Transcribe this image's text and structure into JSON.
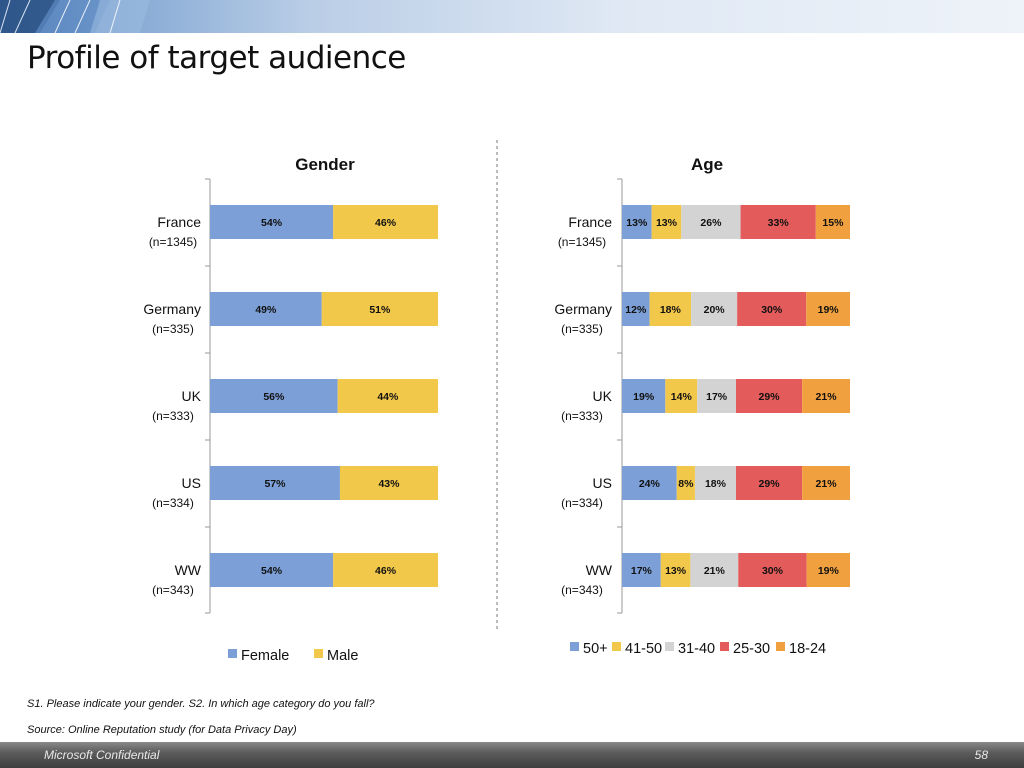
{
  "slide": {
    "title": "Profile of target audience",
    "footnote_question": "S1. Please indicate your gender. S2. In which age category do you fall?",
    "footnote_source": "Source: Online Reputation study (for Data Privacy Day)",
    "footer_left": "Microsoft Confidential",
    "page_number": "58"
  },
  "chart_data": [
    {
      "type": "bar",
      "orientation": "horizontal",
      "stacked": "percent",
      "title": "Gender",
      "categories": [
        "France",
        "Germany",
        "UK",
        "US",
        "WW"
      ],
      "sample_sizes": [
        "(n=1345)",
        "(n=335)",
        "(n=333)",
        "(n=334)",
        "(n=343)"
      ],
      "series": [
        {
          "name": "Female",
          "color": "#7b9fd6",
          "values": [
            54,
            49,
            56,
            57,
            54
          ],
          "labels": [
            "54%",
            "49%",
            "56%",
            "57%",
            "54%"
          ]
        },
        {
          "name": "Male",
          "color": "#f2c84b",
          "values": [
            46,
            51,
            44,
            43,
            46
          ],
          "labels": [
            "46%",
            "51%",
            "44%",
            "43%",
            "46%"
          ]
        }
      ],
      "legend_position": "bottom"
    },
    {
      "type": "bar",
      "orientation": "horizontal",
      "stacked": "percent",
      "title": "Age",
      "categories": [
        "France",
        "Germany",
        "UK",
        "US",
        "WW"
      ],
      "sample_sizes": [
        "(n=1345)",
        "(n=335)",
        "(n=333)",
        "(n=334)",
        "(n=343)"
      ],
      "series": [
        {
          "name": "50+",
          "color": "#7b9fd6",
          "values": [
            13,
            12,
            19,
            24,
            17
          ],
          "labels": [
            "13%",
            "12%",
            "19%",
            "24%",
            "17%"
          ]
        },
        {
          "name": "41-50",
          "color": "#f2c84b",
          "values": [
            13,
            18,
            14,
            8,
            13
          ],
          "labels": [
            "13%",
            "18%",
            "14%",
            "8%",
            "13%"
          ]
        },
        {
          "name": "31-40",
          "color": "#d3d3d3",
          "values": [
            26,
            20,
            17,
            18,
            21
          ],
          "labels": [
            "26%",
            "20%",
            "17%",
            "18%",
            "21%"
          ]
        },
        {
          "name": "25-30",
          "color": "#e45b5b",
          "values": [
            33,
            30,
            29,
            29,
            30
          ],
          "labels": [
            "33%",
            "30%",
            "29%",
            "29%",
            "30%"
          ]
        },
        {
          "name": "18-24",
          "color": "#f0a03e",
          "values": [
            15,
            19,
            21,
            21,
            19
          ],
          "labels": [
            "15%",
            "19%",
            "21%",
            "21%",
            "19%"
          ]
        }
      ],
      "legend_position": "bottom"
    }
  ]
}
